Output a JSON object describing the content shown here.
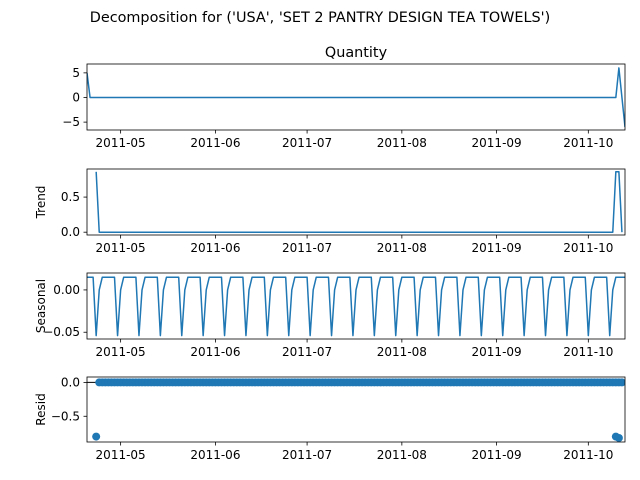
{
  "figure": {
    "suptitle": "Decomposition for ('USA', 'SET 2 PANTRY DESIGN TEA TOWELS')"
  },
  "colors": {
    "series": "#1f77b4",
    "axis": "#000000",
    "background": "#ffffff"
  },
  "chart_data": [
    {
      "type": "line",
      "title": "Quantity",
      "ylabel": "",
      "xlabel": "",
      "x_start": "2011-04-20",
      "x_end": "2011-10-13",
      "ylim": [
        -6.6,
        6.8
      ],
      "yticks": [
        5,
        0,
        -5
      ],
      "ytick_labels": [
        "5",
        "0",
        "−5"
      ],
      "xticks": [
        "2011-05-01",
        "2011-06-01",
        "2011-07-01",
        "2011-08-01",
        "2011-09-01",
        "2011-10-01"
      ],
      "xtick_labels": [
        "2011-05",
        "2011-06",
        "2011-07",
        "2011-08",
        "2011-09",
        "2011-10"
      ],
      "points": [
        {
          "x": "2011-04-20",
          "y": 5
        },
        {
          "x": "2011-04-21",
          "y": 0
        },
        {
          "x": "2011-10-10",
          "y": 0
        },
        {
          "x": "2011-10-11",
          "y": 6
        },
        {
          "x": "2011-10-13",
          "y": -6
        }
      ]
    },
    {
      "type": "line",
      "title": "",
      "ylabel": "Trend",
      "xlabel": "",
      "x_start": "2011-04-20",
      "x_end": "2011-10-13",
      "ylim": [
        -0.04,
        0.9
      ],
      "yticks": [
        0.5,
        0.0
      ],
      "ytick_labels": [
        "0.5",
        "0.0"
      ],
      "xticks": [
        "2011-05-01",
        "2011-06-01",
        "2011-07-01",
        "2011-08-01",
        "2011-09-01",
        "2011-10-01"
      ],
      "xtick_labels": [
        "2011-05",
        "2011-06",
        "2011-07",
        "2011-08",
        "2011-09",
        "2011-10"
      ],
      "points": [
        {
          "x": "2011-04-23",
          "y": 0.86
        },
        {
          "x": "2011-04-24",
          "y": 0.0
        },
        {
          "x": "2011-10-09",
          "y": 0.0
        },
        {
          "x": "2011-10-10",
          "y": 0.86
        },
        {
          "x": "2011-10-11",
          "y": 0.86
        },
        {
          "x": "2011-10-12",
          "y": 0.0
        }
      ]
    },
    {
      "type": "line",
      "title": "",
      "ylabel": "Seasonal",
      "xlabel": "",
      "x_start": "2011-04-20",
      "x_end": "2011-10-13",
      "ylim": [
        -0.058,
        0.02
      ],
      "yticks": [
        0.0,
        -0.05
      ],
      "ytick_labels": [
        "0.00",
        "−0.05"
      ],
      "xticks": [
        "2011-05-01",
        "2011-06-01",
        "2011-07-01",
        "2011-08-01",
        "2011-09-01",
        "2011-10-01"
      ],
      "xtick_labels": [
        "2011-05",
        "2011-06",
        "2011-07",
        "2011-08",
        "2011-09",
        "2011-10"
      ],
      "period_days": 7,
      "pattern": [
        0.015,
        0.015,
        0.015,
        0.015,
        0.015,
        -0.054,
        0.0
      ],
      "pattern_start": "2011-04-18"
    },
    {
      "type": "scatter",
      "title": "",
      "ylabel": "Resid",
      "xlabel": "",
      "x_start": "2011-04-20",
      "x_end": "2011-10-13",
      "ylim": [
        -0.88,
        0.08
      ],
      "yticks": [
        0.0,
        -0.5
      ],
      "ytick_labels": [
        "0.0",
        "−0.5"
      ],
      "xticks": [
        "2011-05-01",
        "2011-06-01",
        "2011-07-01",
        "2011-08-01",
        "2011-09-01",
        "2011-10-01"
      ],
      "xtick_labels": [
        "2011-05",
        "2011-06",
        "2011-07",
        "2011-08",
        "2011-09",
        "2011-10"
      ],
      "baseline": 0,
      "points": [
        {
          "x": "2011-04-23",
          "y": -0.8
        },
        {
          "x": "2011-10-10",
          "y": -0.8
        },
        {
          "x": "2011-10-11",
          "y": -0.82
        }
      ],
      "baseline_points": {
        "start": "2011-04-24",
        "end": "2011-10-12",
        "value": 0.0
      }
    }
  ]
}
